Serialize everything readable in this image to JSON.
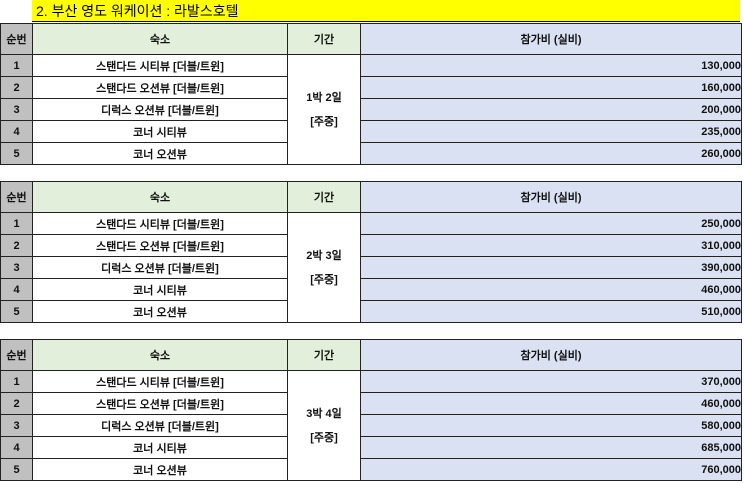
{
  "title": "2. 부산 영도 워케이션 : 라발스호텔",
  "headers": {
    "num": "순번",
    "room": "숙소",
    "period": "기간",
    "price": "참가비 (실비)"
  },
  "rooms": [
    "스탠다드 시티뷰 [더블/트윈]",
    "스탠다드 오션뷰 [더블/트윈]",
    "디럭스 오션뷰 [더블/트윈]",
    "코너 시티뷰",
    "코너 오션뷰"
  ],
  "tables": [
    {
      "period_line1": "1박 2일",
      "period_line2": "[주중]",
      "rows": [
        {
          "num": "1",
          "price": "130,000"
        },
        {
          "num": "2",
          "price": "160,000"
        },
        {
          "num": "3",
          "price": "200,000"
        },
        {
          "num": "4",
          "price": "235,000"
        },
        {
          "num": "5",
          "price": "260,000"
        }
      ]
    },
    {
      "period_line1": "2박 3일",
      "period_line2": "[주중]",
      "rows": [
        {
          "num": "1",
          "price": "250,000"
        },
        {
          "num": "2",
          "price": "310,000"
        },
        {
          "num": "3",
          "price": "390,000"
        },
        {
          "num": "4",
          "price": "460,000"
        },
        {
          "num": "5",
          "price": "510,000"
        }
      ]
    },
    {
      "period_line1": "3박 4일",
      "period_line2": "[주중]",
      "rows": [
        {
          "num": "1",
          "price": "370,000"
        },
        {
          "num": "2",
          "price": "460,000"
        },
        {
          "num": "3",
          "price": "580,000"
        },
        {
          "num": "4",
          "price": "685,000"
        },
        {
          "num": "5",
          "price": "760,000"
        }
      ]
    }
  ],
  "colors": {
    "banner": "#ffff00",
    "price_text": "#ff0000",
    "price_bg": "#d9e1f2",
    "header_bg": "#e2efda",
    "num_bg": "#c0c0c0"
  }
}
